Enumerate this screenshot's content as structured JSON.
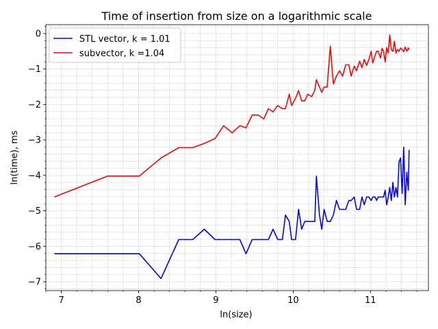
{
  "chart_data": {
    "type": "line",
    "title": "Time of insertion from size on a logarithmic scale",
    "xlabel": "ln(size)",
    "ylabel": "ln(time), ms",
    "xlim": [
      6.8,
      11.75
    ],
    "ylim": [
      -7.25,
      0.25
    ],
    "xticks": [
      7,
      8,
      9,
      10,
      11
    ],
    "xtick_labels": [
      "7",
      "8",
      "9",
      "10",
      "11"
    ],
    "yticks": [
      0,
      -1,
      -2,
      -3,
      -4,
      -5,
      -6,
      -7
    ],
    "ytick_labels": [
      "0",
      "−1",
      "−2",
      "−3",
      "−4",
      "−5",
      "−6",
      "−7"
    ],
    "grid": "minor dotted",
    "legend_position": "upper-left",
    "series": [
      {
        "name": "STL vector, k = 1.01",
        "color": "#0000ff",
        "x": [
          6.91,
          7.6,
          8.01,
          8.29,
          8.52,
          8.7,
          8.85,
          8.99,
          9.21,
          9.31,
          9.39,
          9.47,
          9.55,
          9.68,
          9.74,
          9.8,
          9.86,
          9.9,
          9.95,
          9.98,
          10.03,
          10.07,
          10.11,
          10.15,
          10.19,
          10.24,
          10.28,
          10.3,
          10.34,
          10.37,
          10.4,
          10.44,
          10.48,
          10.52,
          10.56,
          10.6,
          10.64,
          10.68,
          10.72,
          10.75,
          10.79,
          10.82,
          10.86,
          10.89,
          10.92,
          10.95,
          10.98,
          11.01,
          11.03,
          11.06,
          11.08,
          11.1,
          11.13,
          11.15,
          11.17,
          11.19,
          11.21,
          11.23,
          11.25,
          11.27,
          11.29,
          11.31,
          11.33,
          11.35,
          11.37,
          11.39,
          11.41,
          11.43,
          11.45,
          11.47,
          11.49,
          11.5
        ],
        "y": [
          -6.21,
          -6.21,
          -6.21,
          -6.91,
          -5.81,
          -5.81,
          -5.52,
          -5.81,
          -5.81,
          -5.81,
          -6.21,
          -5.81,
          -5.81,
          -5.81,
          -5.52,
          -5.81,
          -5.81,
          -5.12,
          -5.3,
          -5.81,
          -5.81,
          -4.96,
          -5.52,
          -5.3,
          -5.3,
          -5.3,
          -5.3,
          -4.02,
          -5.12,
          -5.52,
          -4.96,
          -5.3,
          -5.3,
          -5.12,
          -4.71,
          -4.96,
          -4.96,
          -4.96,
          -4.71,
          -4.71,
          -4.61,
          -4.96,
          -4.96,
          -4.61,
          -4.83,
          -4.61,
          -4.61,
          -4.71,
          -4.61,
          -4.61,
          -4.71,
          -4.61,
          -4.61,
          -4.61,
          -4.61,
          -4.42,
          -4.83,
          -4.61,
          -4.34,
          -4.71,
          -4.2,
          -4.61,
          -4.34,
          -4.61,
          -3.62,
          -3.51,
          -4.51,
          -3.2,
          -4.83,
          -3.91,
          -4.42,
          -3.28
        ]
      },
      {
        "name": "subvector, k =1.04",
        "color": "#ff0000",
        "x": [
          6.91,
          7.6,
          8.01,
          8.29,
          8.52,
          8.7,
          8.85,
          8.99,
          9.1,
          9.21,
          9.31,
          9.39,
          9.47,
          9.55,
          9.62,
          9.68,
          9.74,
          9.8,
          9.86,
          9.9,
          9.95,
          9.98,
          10.03,
          10.07,
          10.11,
          10.15,
          10.19,
          10.24,
          10.28,
          10.3,
          10.34,
          10.37,
          10.4,
          10.44,
          10.48,
          10.52,
          10.56,
          10.6,
          10.64,
          10.68,
          10.72,
          10.75,
          10.79,
          10.82,
          10.86,
          10.89,
          10.92,
          10.95,
          10.98,
          11.01,
          11.03,
          11.06,
          11.08,
          11.1,
          11.13,
          11.15,
          11.17,
          11.19,
          11.21,
          11.23,
          11.25,
          11.27,
          11.29,
          11.31,
          11.33,
          11.35,
          11.37,
          11.39,
          11.41,
          11.43,
          11.45,
          11.47,
          11.49,
          11.5
        ],
        "y": [
          -4.61,
          -4.02,
          -4.02,
          -3.51,
          -3.22,
          -3.22,
          -3.1,
          -2.96,
          -2.6,
          -2.8,
          -2.6,
          -2.66,
          -2.3,
          -2.3,
          -2.41,
          -2.12,
          -2.21,
          -2.03,
          -2.12,
          -2.12,
          -1.71,
          -2.03,
          -1.83,
          -1.61,
          -1.9,
          -1.9,
          -1.71,
          -1.78,
          -1.6,
          -1.3,
          -1.51,
          -1.66,
          -1.51,
          -1.51,
          -0.36,
          -1.42,
          -1.2,
          -1.05,
          -1.2,
          -0.88,
          -0.88,
          -1.2,
          -0.92,
          -1.05,
          -0.78,
          -0.96,
          -0.73,
          -0.9,
          -0.73,
          -0.5,
          -0.83,
          -0.62,
          -0.5,
          -0.5,
          -0.69,
          -0.42,
          -0.5,
          -0.8,
          -0.4,
          -0.55,
          -0.04,
          -0.45,
          -0.5,
          -0.22,
          -0.55,
          -0.45,
          -0.5,
          -0.41,
          -0.45,
          -0.51,
          -0.38,
          -0.5,
          -0.41,
          -0.46
        ]
      }
    ]
  }
}
